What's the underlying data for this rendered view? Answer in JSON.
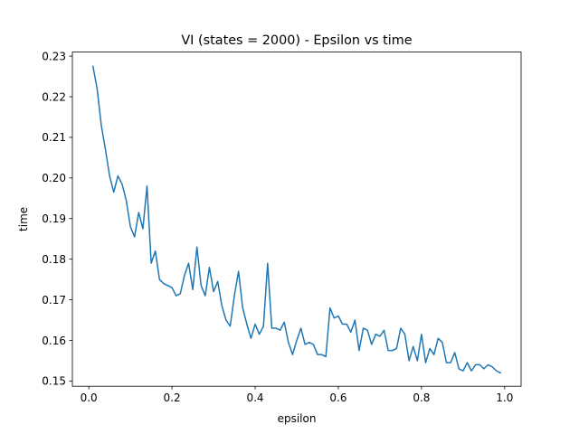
{
  "chart_data": {
    "type": "line",
    "title": "VI (states = 2000) - Epsilon vs time",
    "xlabel": "epsilon",
    "ylabel": "time",
    "xlim": [
      -0.0395,
      1.0395
    ],
    "ylim": [
      0.1487,
      0.231
    ],
    "grid": false,
    "xticks": [
      0.0,
      0.2,
      0.4,
      0.6,
      0.8,
      1.0
    ],
    "xtick_labels": [
      "0.0",
      "0.2",
      "0.4",
      "0.6",
      "0.8",
      "1.0"
    ],
    "yticks": [
      0.15,
      0.16,
      0.17,
      0.18,
      0.19,
      0.2,
      0.21,
      0.22,
      0.23
    ],
    "ytick_labels": [
      "0.15",
      "0.16",
      "0.17",
      "0.18",
      "0.19",
      "0.20",
      "0.21",
      "0.22",
      "0.23"
    ],
    "series": [
      {
        "color": "#1f77b4",
        "x": [
          0.01,
          0.02,
          0.03,
          0.04,
          0.05,
          0.06,
          0.07,
          0.08,
          0.09,
          0.1,
          0.11,
          0.12,
          0.13,
          0.14,
          0.15,
          0.16,
          0.17,
          0.18,
          0.19,
          0.2,
          0.21,
          0.22,
          0.23,
          0.24,
          0.25,
          0.26,
          0.27,
          0.28,
          0.29,
          0.3,
          0.31,
          0.32,
          0.33,
          0.34,
          0.35,
          0.36,
          0.37,
          0.38,
          0.39,
          0.4,
          0.41,
          0.42,
          0.43,
          0.44,
          0.45,
          0.46,
          0.47,
          0.48,
          0.49,
          0.5,
          0.51,
          0.52,
          0.53,
          0.54,
          0.55,
          0.56,
          0.57,
          0.58,
          0.59,
          0.6,
          0.61,
          0.62,
          0.63,
          0.64,
          0.65,
          0.66,
          0.67,
          0.68,
          0.69,
          0.7,
          0.71,
          0.72,
          0.73,
          0.74,
          0.75,
          0.76,
          0.77,
          0.78,
          0.79,
          0.8,
          0.81,
          0.82,
          0.83,
          0.84,
          0.85,
          0.86,
          0.87,
          0.88,
          0.89,
          0.9,
          0.91,
          0.92,
          0.93,
          0.94,
          0.95,
          0.96,
          0.97,
          0.98,
          0.99
        ],
        "y": [
          0.2275,
          0.222,
          0.213,
          0.207,
          0.2005,
          0.1965,
          0.2005,
          0.1985,
          0.1945,
          0.188,
          0.1855,
          0.1915,
          0.1875,
          0.198,
          0.179,
          0.182,
          0.175,
          0.174,
          0.1735,
          0.173,
          0.171,
          0.1715,
          0.176,
          0.179,
          0.1725,
          0.183,
          0.1735,
          0.171,
          0.178,
          0.172,
          0.1745,
          0.1685,
          0.165,
          0.1635,
          0.171,
          0.177,
          0.168,
          0.164,
          0.1605,
          0.164,
          0.1615,
          0.1635,
          0.179,
          0.163,
          0.163,
          0.1625,
          0.1645,
          0.1595,
          0.1565,
          0.16,
          0.163,
          0.159,
          0.1595,
          0.159,
          0.1565,
          0.1565,
          0.156,
          0.168,
          0.1655,
          0.166,
          0.164,
          0.164,
          0.162,
          0.165,
          0.1575,
          0.163,
          0.1625,
          0.159,
          0.1615,
          0.161,
          0.1625,
          0.1575,
          0.1575,
          0.158,
          0.163,
          0.1615,
          0.155,
          0.1585,
          0.155,
          0.1615,
          0.1545,
          0.158,
          0.1565,
          0.1605,
          0.1595,
          0.1545,
          0.1545,
          0.157,
          0.153,
          0.1525,
          0.1545,
          0.1525,
          0.154,
          0.154,
          0.153,
          0.154,
          0.1535,
          0.1525,
          0.152
        ]
      }
    ]
  }
}
